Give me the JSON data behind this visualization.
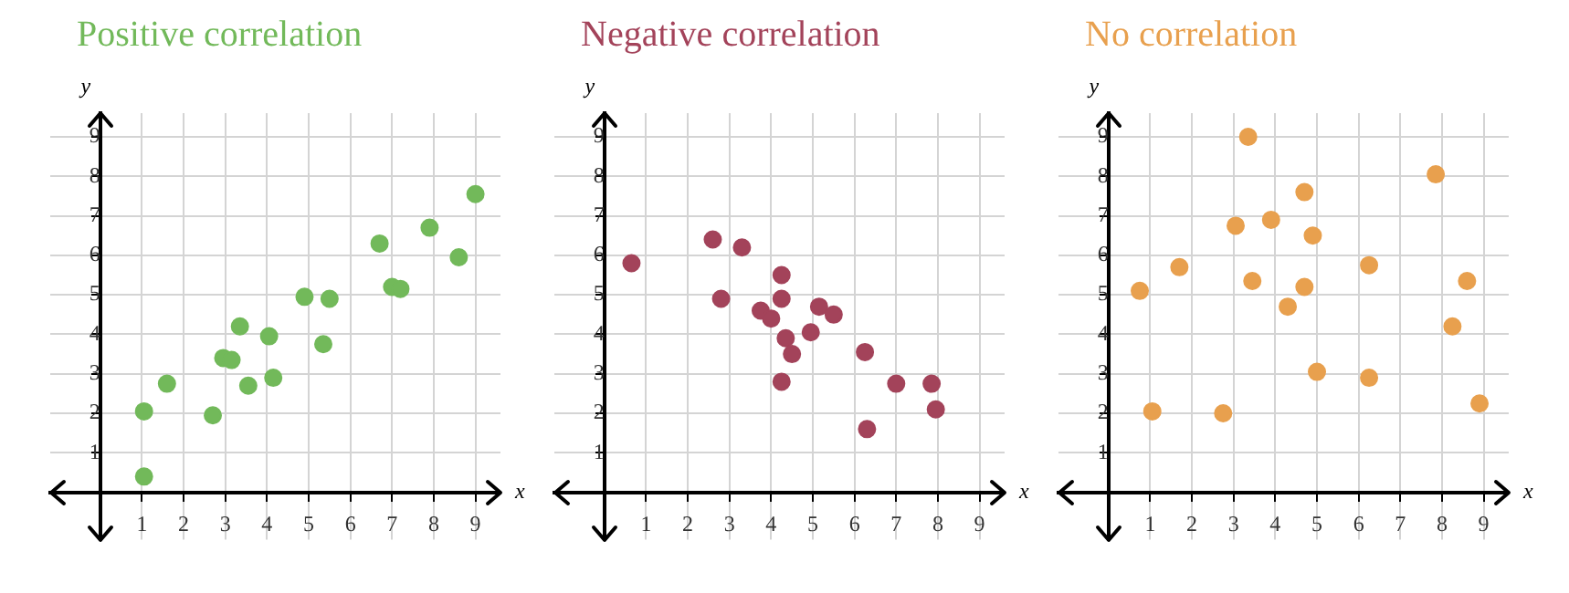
{
  "chart_data": [
    {
      "type": "scatter",
      "title": "Positive correlation",
      "xlabel": "x",
      "ylabel": "y",
      "marker": "circle",
      "grid": true,
      "legend": false,
      "xlim": [
        -1.2,
        9.6
      ],
      "ylim": [
        -1.2,
        9.6
      ],
      "xticks": [
        1,
        2,
        3,
        4,
        5,
        6,
        7,
        8,
        9
      ],
      "yticks": [
        1,
        2,
        3,
        4,
        5,
        6,
        7,
        8,
        9
      ],
      "series": [
        {
          "color": "#72b95a",
          "x": [
            1.05,
            1.05,
            1.6,
            2.7,
            2.95,
            3.15,
            3.35,
            3.55,
            4.05,
            4.15,
            4.9,
            5.35,
            5.5,
            6.7,
            7.0,
            7.2,
            7.9,
            8.6,
            9.0
          ],
          "values": [
            0.4,
            2.05,
            2.75,
            1.95,
            3.4,
            3.35,
            4.2,
            2.7,
            3.95,
            2.9,
            4.95,
            3.75,
            4.9,
            6.3,
            5.2,
            5.15,
            6.7,
            5.95,
            7.55
          ]
        }
      ]
    },
    {
      "type": "scatter",
      "title": "Negative correlation",
      "xlabel": "x",
      "ylabel": "y",
      "marker": "circle",
      "grid": true,
      "legend": false,
      "xlim": [
        -1.2,
        9.6
      ],
      "ylim": [
        -1.2,
        9.6
      ],
      "xticks": [
        1,
        2,
        3,
        4,
        5,
        6,
        7,
        8,
        9
      ],
      "yticks": [
        1,
        2,
        3,
        4,
        5,
        6,
        7,
        8,
        9
      ],
      "series": [
        {
          "color": "#a3435a",
          "x": [
            0.65,
            2.6,
            2.8,
            3.3,
            3.75,
            4.0,
            4.25,
            4.25,
            4.35,
            4.5,
            4.25,
            4.95,
            5.15,
            5.5,
            6.25,
            6.3,
            7.0,
            7.85,
            7.95
          ],
          "values": [
            5.8,
            6.4,
            4.9,
            6.2,
            4.6,
            4.4,
            5.5,
            4.9,
            3.9,
            3.5,
            2.8,
            4.05,
            4.7,
            4.5,
            3.55,
            1.6,
            2.75,
            2.75,
            2.1
          ]
        }
      ]
    },
    {
      "type": "scatter",
      "title": "No correlation",
      "xlabel": "x",
      "ylabel": "y",
      "marker": "circle",
      "grid": true,
      "legend": false,
      "xlim": [
        -1.2,
        9.6
      ],
      "ylim": [
        -1.2,
        9.6
      ],
      "xticks": [
        1,
        2,
        3,
        4,
        5,
        6,
        7,
        8,
        9
      ],
      "yticks": [
        1,
        2,
        3,
        4,
        5,
        6,
        7,
        8,
        9
      ],
      "series": [
        {
          "color": "#e8a04e",
          "x": [
            0.75,
            1.05,
            1.7,
            2.75,
            3.05,
            3.35,
            3.45,
            3.9,
            4.3,
            4.7,
            4.7,
            4.9,
            5.0,
            6.25,
            6.25,
            7.85,
            8.25,
            8.6,
            8.9
          ],
          "values": [
            5.1,
            2.05,
            5.7,
            2.0,
            6.75,
            9.0,
            5.35,
            6.9,
            4.7,
            7.6,
            5.2,
            6.5,
            3.05,
            5.75,
            2.9,
            8.05,
            4.2,
            5.35,
            2.25
          ]
        }
      ]
    }
  ]
}
